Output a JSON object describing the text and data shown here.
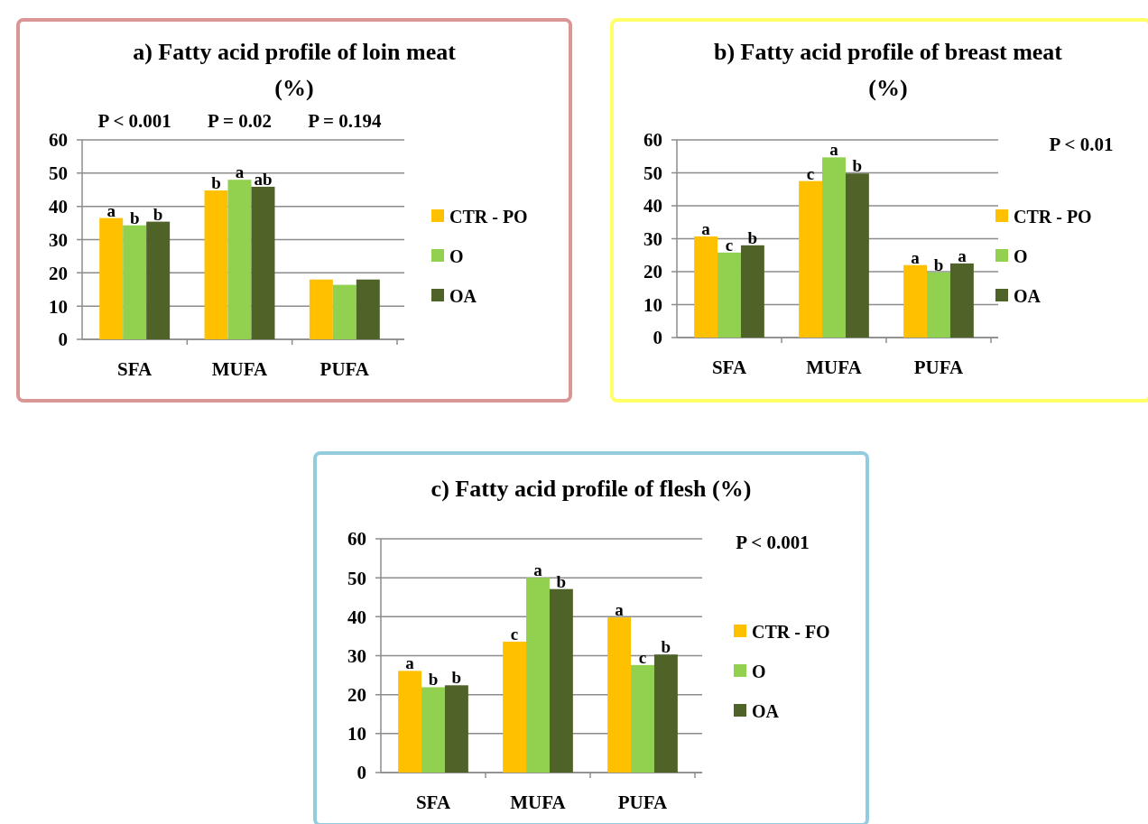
{
  "chart_data": [
    {
      "type": "bar",
      "title": "a) Fatty acid profile of loin meat (%)",
      "categories": [
        "SFA",
        "MUFA",
        "PUFA"
      ],
      "series": [
        {
          "name": "CTR - PO",
          "color": "#ffc000",
          "values": [
            36.5,
            44.8,
            18.0
          ],
          "value_labels": [
            "a",
            "b",
            null
          ]
        },
        {
          "name": "O",
          "color": "#92d050",
          "values": [
            34.3,
            48.0,
            16.4
          ],
          "value_labels": [
            "b",
            "a",
            null
          ]
        },
        {
          "name": "OA",
          "color": "#4f6228",
          "values": [
            35.4,
            45.9,
            18.0
          ],
          "value_labels": [
            "b",
            "ab",
            null
          ]
        }
      ],
      "ylim": [
        0,
        60
      ],
      "yticks": [
        0,
        10,
        20,
        30,
        40,
        50,
        60
      ],
      "grid": "y",
      "legend": "right",
      "annotations": [
        "P < 0.001",
        "P = 0.02",
        "P = 0.194"
      ]
    },
    {
      "type": "bar",
      "title": "b) Fatty acid profile of breast meat (%)",
      "categories": [
        "SFA",
        "MUFA",
        "PUFA"
      ],
      "series": [
        {
          "name": "CTR - PO",
          "color": "#ffc000",
          "values": [
            30.7,
            47.5,
            22.0
          ],
          "value_labels": [
            "a",
            "c",
            "a"
          ]
        },
        {
          "name": "O",
          "color": "#92d050",
          "values": [
            25.8,
            54.7,
            19.8
          ],
          "value_labels": [
            "c",
            "a",
            "b"
          ]
        },
        {
          "name": "OA",
          "color": "#4f6228",
          "values": [
            28.0,
            49.8,
            22.5
          ],
          "value_labels": [
            "b",
            "b",
            "a"
          ]
        }
      ],
      "ylim": [
        0,
        60
      ],
      "yticks": [
        0,
        10,
        20,
        30,
        40,
        50,
        60
      ],
      "grid": "y",
      "legend": "right",
      "annotations": [
        "P < 0.01"
      ]
    },
    {
      "type": "bar",
      "title": "c) Fatty acid profile of flesh (%)",
      "categories": [
        "SFA",
        "MUFA",
        "PUFA"
      ],
      "series": [
        {
          "name": "CTR - FO",
          "color": "#ffc000",
          "values": [
            26.1,
            33.6,
            39.8
          ],
          "value_labels": [
            "a",
            "c",
            "a"
          ]
        },
        {
          "name": "O",
          "color": "#92d050",
          "values": [
            21.9,
            50.0,
            27.6
          ],
          "value_labels": [
            "b",
            "a",
            "c"
          ]
        },
        {
          "name": "OA",
          "color": "#4f6228",
          "values": [
            22.4,
            47.1,
            30.3
          ],
          "value_labels": [
            "b",
            "b",
            "b"
          ]
        }
      ],
      "ylim": [
        0,
        60
      ],
      "yticks": [
        0,
        10,
        20,
        30,
        40,
        50,
        60
      ],
      "grid": "y",
      "legend": "right",
      "annotations": [
        "P < 0.001"
      ]
    }
  ]
}
